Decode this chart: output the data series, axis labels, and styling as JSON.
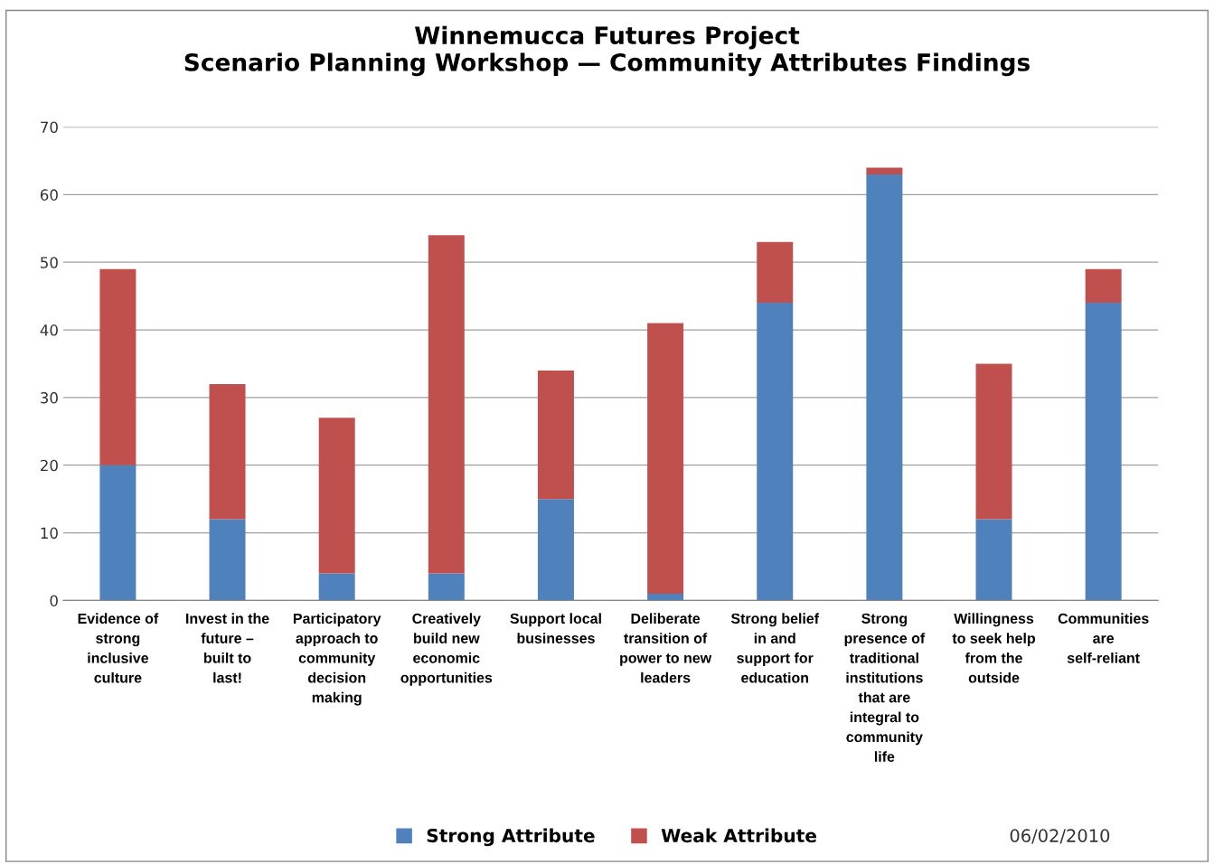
{
  "chart_data": {
    "type": "bar",
    "title": "Winnemucca Futures Project\nScenario Planning Workshop — Community Attributes Findings",
    "categories": [
      "Evidence of strong inclusive culture",
      "Invest in the future – built to last!",
      "Participatory approach to community decision making",
      "Creatively build new economic opportunities",
      "Support local businesses",
      "Deliberate transition of power to new leaders",
      "Strong belief in and support for education",
      "Strong presence of traditional institutions that are integral to community life",
      "Willingness to seek help from the outside",
      "Communities are self-reliant"
    ],
    "series": [
      {
        "name": "Strong Attribute",
        "color": "#4f81bd",
        "values": [
          20,
          12,
          4,
          4,
          15,
          1,
          44,
          63,
          12,
          44
        ]
      },
      {
        "name": "Weak Attribute",
        "color": "#c0504d",
        "values": [
          29,
          20,
          23,
          50,
          19,
          40,
          9,
          1,
          23,
          5
        ]
      }
    ],
    "stacked": true,
    "ylim": [
      0,
      70
    ],
    "yticks": [
      0,
      10,
      20,
      30,
      40,
      50,
      60,
      70
    ],
    "grid": "y",
    "legend": "bottom",
    "annotations": [
      "06/02/2010"
    ]
  }
}
